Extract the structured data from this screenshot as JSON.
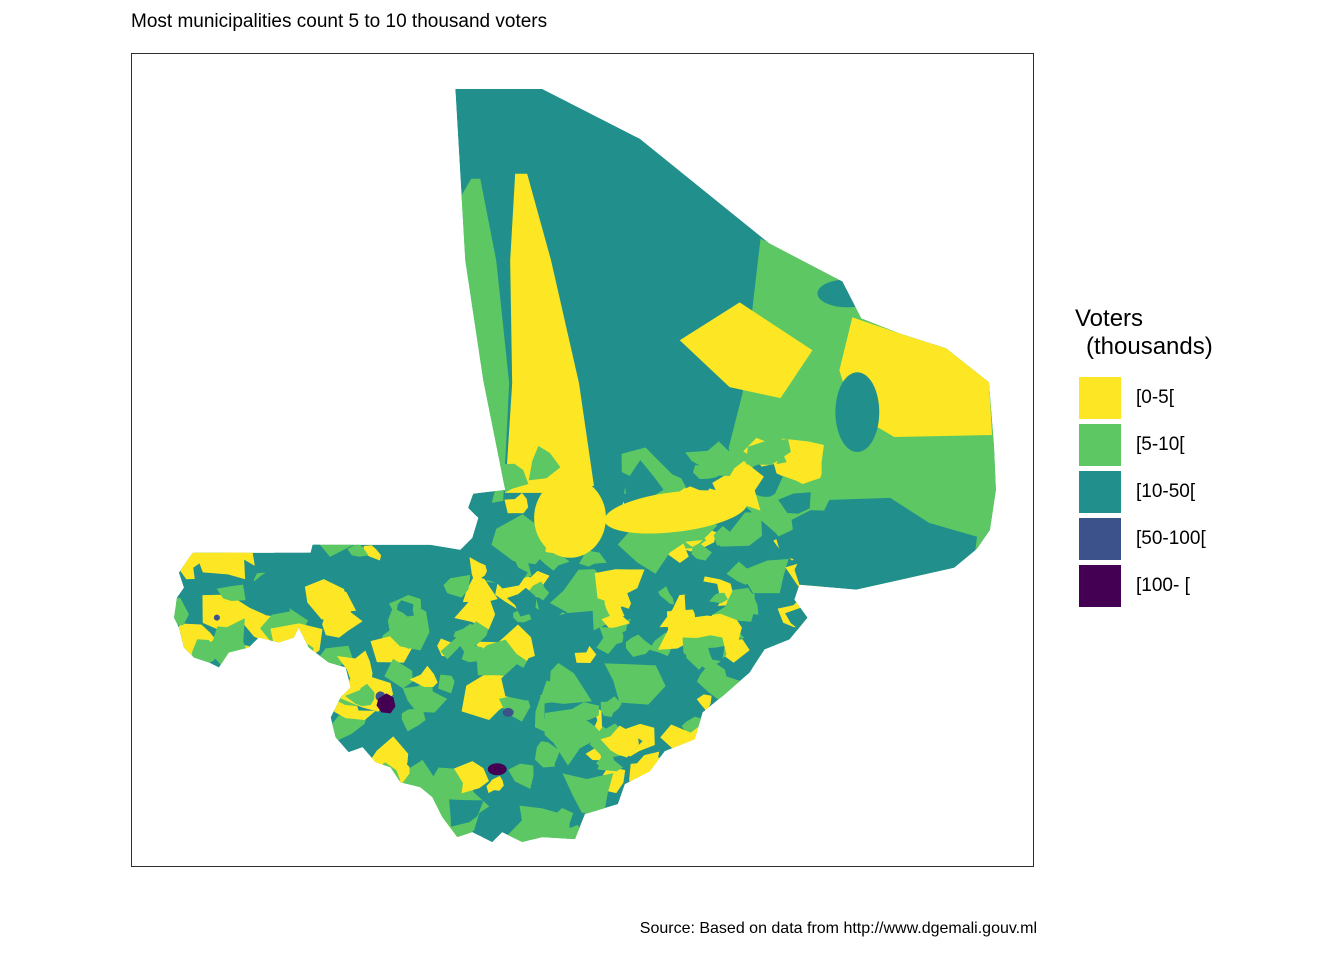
{
  "title": "Most municipalities count 5 to 10 thousand voters",
  "caption": "Source: Based on data from http://www.dgemali.gouv.ml",
  "legend": {
    "title": "Voters",
    "subtitle": "(thousands)",
    "items": [
      {
        "label": "[0-5[",
        "color": "#FDE725"
      },
      {
        "label": "[5-10[",
        "color": "#5DC863"
      },
      {
        "label": "[10-50[",
        "color": "#21908C"
      },
      {
        "label": "[50-100[",
        "color": "#3B528B"
      },
      {
        "label": "[100- [",
        "color": "#440154"
      }
    ]
  },
  "chart_data": {
    "type": "heatmap",
    "subtype": "choropleth map of municipalities",
    "title": "Most municipalities count 5 to 10 thousand voters",
    "legend_title": "Voters (thousands)",
    "legend_position": "right",
    "classes": [
      {
        "bin": "[0-5[",
        "color": "#FDE725"
      },
      {
        "bin": "[5-10[",
        "color": "#5DC863"
      },
      {
        "bin": "[10-50[",
        "color": "#21908C"
      },
      {
        "bin": "[50-100[",
        "color": "#3B528B"
      },
      {
        "bin": "[100- [",
        "color": "#440154"
      }
    ],
    "caption": "Source: Based on data from http://www.dgemali.gouv.ml"
  }
}
